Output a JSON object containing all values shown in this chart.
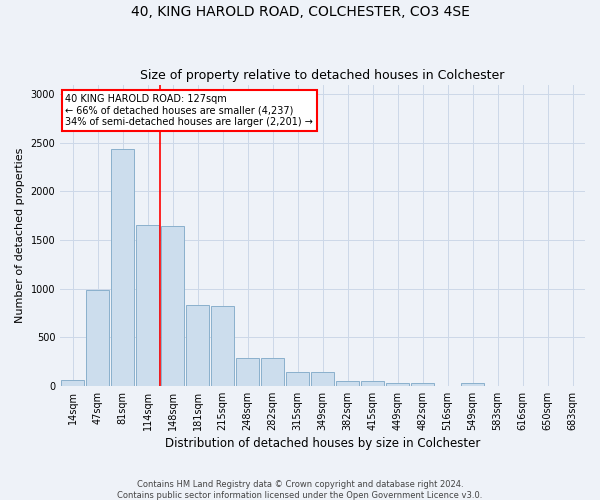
{
  "title": "40, KING HAROLD ROAD, COLCHESTER, CO3 4SE",
  "subtitle": "Size of property relative to detached houses in Colchester",
  "xlabel": "Distribution of detached houses by size in Colchester",
  "ylabel": "Number of detached properties",
  "bar_labels": [
    "14sqm",
    "47sqm",
    "81sqm",
    "114sqm",
    "148sqm",
    "181sqm",
    "215sqm",
    "248sqm",
    "282sqm",
    "315sqm",
    "349sqm",
    "382sqm",
    "415sqm",
    "449sqm",
    "482sqm",
    "516sqm",
    "549sqm",
    "583sqm",
    "616sqm",
    "650sqm",
    "683sqm"
  ],
  "bar_values": [
    55,
    990,
    2440,
    1650,
    1640,
    830,
    825,
    290,
    290,
    145,
    145,
    50,
    50,
    30,
    30,
    0,
    30,
    0,
    0,
    0,
    0
  ],
  "bar_color": "#ccdded",
  "bar_edge_color": "#8ab0cc",
  "vline_x": 3.5,
  "vline_color": "red",
  "annotation_text": "40 KING HAROLD ROAD: 127sqm\n← 66% of detached houses are smaller (4,237)\n34% of semi-detached houses are larger (2,201) →",
  "annotation_box_color": "white",
  "annotation_box_edge_color": "red",
  "ylim": [
    0,
    3100
  ],
  "yticks": [
    0,
    500,
    1000,
    1500,
    2000,
    2500,
    3000
  ],
  "footer_text": "Contains HM Land Registry data © Crown copyright and database right 2024.\nContains public sector information licensed under the Open Government Licence v3.0.",
  "grid_color": "#ccd8e8",
  "background_color": "#eef2f8",
  "title_fontsize": 10,
  "subtitle_fontsize": 9,
  "ylabel_fontsize": 8,
  "xlabel_fontsize": 8.5,
  "tick_fontsize": 7,
  "annotation_fontsize": 7,
  "footer_fontsize": 6
}
